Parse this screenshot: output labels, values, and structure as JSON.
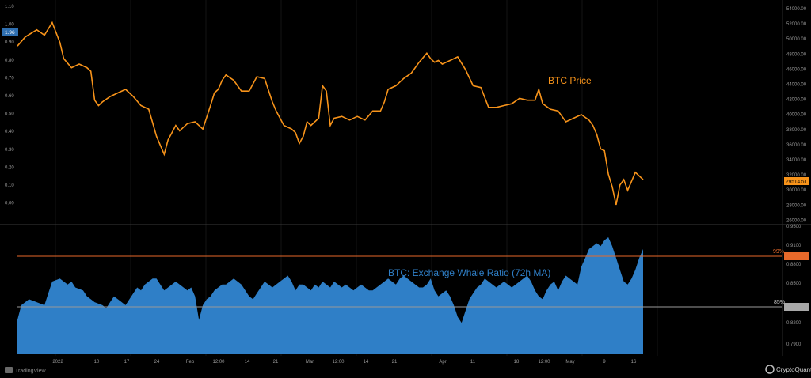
{
  "chart_data": [
    {
      "type": "line",
      "title": "BTC Price",
      "series": [
        {
          "name": "BTC Price",
          "color": "#f7931a",
          "x": [
            0,
            10,
            25,
            35,
            45,
            55,
            60,
            70,
            80,
            90,
            95,
            100,
            105,
            110,
            120,
            130,
            140,
            150,
            160,
            170,
            180,
            185,
            190,
            195,
            200,
            205,
            210,
            220,
            230,
            240,
            250,
            255,
            260,
            265,
            270,
            280,
            290,
            300,
            310,
            320,
            330,
            335,
            340,
            345,
            350,
            355,
            360,
            365,
            370,
            375,
            380,
            385,
            390,
            395,
            400,
            405,
            410,
            420,
            430,
            440,
            450,
            460,
            470,
            475,
            480,
            490,
            500,
            510,
            520,
            530,
            535,
            540,
            545,
            550,
            560,
            570,
            580,
            590,
            600,
            610,
            620,
            630,
            640,
            650,
            660,
            670,
            675,
            680,
            690,
            700,
            710,
            720,
            730,
            740,
            745,
            750,
            755,
            760,
            765,
            770,
            775,
            780,
            785,
            790,
            800,
            810
          ],
          "y": [
            0.88,
            0.93,
            0.97,
            0.94,
            1.01,
            0.9,
            0.81,
            0.76,
            0.78,
            0.76,
            0.74,
            0.58,
            0.55,
            0.57,
            0.6,
            0.62,
            0.64,
            0.6,
            0.55,
            0.53,
            0.38,
            0.33,
            0.28,
            0.36,
            0.4,
            0.44,
            0.41,
            0.45,
            0.46,
            0.42,
            0.55,
            0.62,
            0.64,
            0.69,
            0.72,
            0.69,
            0.63,
            0.63,
            0.71,
            0.7,
            0.57,
            0.52,
            0.48,
            0.44,
            0.43,
            0.42,
            0.4,
            0.34,
            0.38,
            0.46,
            0.44,
            0.46,
            0.48,
            0.66,
            0.63,
            0.44,
            0.48,
            0.49,
            0.47,
            0.49,
            0.47,
            0.52,
            0.52,
            0.57,
            0.64,
            0.66,
            0.7,
            0.73,
            0.79,
            0.84,
            0.81,
            0.79,
            0.8,
            0.78,
            0.8,
            0.82,
            0.75,
            0.66,
            0.65,
            0.54,
            0.54,
            0.55,
            0.56,
            0.59,
            0.58,
            0.58,
            0.64,
            0.56,
            0.53,
            0.52,
            0.46,
            0.48,
            0.5,
            0.47,
            0.44,
            0.39,
            0.31,
            0.3,
            0.17,
            0.1,
            0.0,
            0.11,
            0.14,
            0.08,
            0.18,
            0.14
          ]
        }
      ],
      "y_ticks_left": [
        "1.10",
        "1.00",
        "0.90",
        "0.80",
        "0.70",
        "0.60",
        "0.50",
        "0.40",
        "0.30",
        "0.20",
        "0.10",
        "0.00"
      ],
      "y_ticks_right": [
        "54000.00",
        "52000.00",
        "50000.00",
        "48000.00",
        "46000.00",
        "44000.00",
        "42000.00",
        "40000.00",
        "38000.00",
        "36000.00",
        "34000.00",
        "32000.00",
        "30000.00",
        "28000.00",
        "26000.00"
      ],
      "left_badge": "1.96",
      "price_badge": "29514.51",
      "annotation": "BTC Price"
    },
    {
      "type": "area",
      "title": "BTC: Exchange Whale Ratio (72h MA)",
      "series": [
        {
          "name": "BTC: Exchange Whale Ratio (72h MA)",
          "color": "#2f7fc7",
          "x": [
            0,
            5,
            15,
            25,
            35,
            40,
            45,
            55,
            60,
            65,
            70,
            75,
            85,
            90,
            95,
            100,
            110,
            115,
            120,
            125,
            130,
            135,
            140,
            145,
            150,
            155,
            160,
            165,
            170,
            175,
            180,
            185,
            190,
            195,
            200,
            205,
            210,
            215,
            220,
            225,
            230,
            235,
            240,
            245,
            250,
            255,
            260,
            265,
            270,
            280,
            285,
            290,
            295,
            300,
            305,
            310,
            315,
            320,
            325,
            330,
            335,
            340,
            345,
            350,
            355,
            360,
            365,
            370,
            375,
            380,
            385,
            390,
            395,
            400,
            405,
            410,
            415,
            420,
            425,
            430,
            435,
            440,
            445,
            450,
            455,
            460,
            465,
            470,
            475,
            480,
            485,
            490,
            495,
            500,
            505,
            510,
            515,
            520,
            525,
            530,
            535,
            540,
            545,
            550,
            555,
            560,
            565,
            570,
            575,
            580,
            585,
            590,
            595,
            600,
            605,
            610,
            615,
            620,
            625,
            630,
            635,
            640,
            645,
            650,
            655,
            660,
            665,
            670,
            675,
            680,
            685,
            690,
            695,
            700,
            705,
            710,
            715,
            720,
            725,
            730,
            735,
            740,
            745,
            750,
            755,
            760,
            765,
            770,
            775,
            780,
            785,
            790,
            795,
            800,
            805,
            810
          ],
          "y": [
            0.72,
            0.77,
            0.79,
            0.78,
            0.77,
            0.81,
            0.85,
            0.86,
            0.85,
            0.84,
            0.85,
            0.83,
            0.82,
            0.8,
            0.79,
            0.78,
            0.77,
            0.76,
            0.78,
            0.8,
            0.79,
            0.78,
            0.77,
            0.79,
            0.81,
            0.83,
            0.82,
            0.84,
            0.85,
            0.86,
            0.86,
            0.84,
            0.82,
            0.83,
            0.84,
            0.85,
            0.84,
            0.83,
            0.82,
            0.83,
            0.8,
            0.72,
            0.77,
            0.79,
            0.8,
            0.82,
            0.83,
            0.84,
            0.84,
            0.86,
            0.85,
            0.84,
            0.82,
            0.8,
            0.79,
            0.81,
            0.83,
            0.85,
            0.84,
            0.83,
            0.84,
            0.85,
            0.86,
            0.87,
            0.85,
            0.82,
            0.84,
            0.84,
            0.83,
            0.82,
            0.84,
            0.83,
            0.85,
            0.84,
            0.83,
            0.85,
            0.84,
            0.83,
            0.84,
            0.83,
            0.82,
            0.83,
            0.84,
            0.83,
            0.82,
            0.82,
            0.83,
            0.84,
            0.85,
            0.86,
            0.85,
            0.84,
            0.86,
            0.87,
            0.86,
            0.85,
            0.84,
            0.83,
            0.83,
            0.84,
            0.86,
            0.82,
            0.8,
            0.81,
            0.82,
            0.8,
            0.77,
            0.73,
            0.71,
            0.75,
            0.79,
            0.81,
            0.83,
            0.84,
            0.86,
            0.85,
            0.84,
            0.83,
            0.84,
            0.85,
            0.84,
            0.83,
            0.84,
            0.85,
            0.86,
            0.87,
            0.85,
            0.82,
            0.8,
            0.79,
            0.82,
            0.84,
            0.85,
            0.82,
            0.85,
            0.87,
            0.86,
            0.85,
            0.84,
            0.9,
            0.93,
            0.96,
            0.97,
            0.98,
            0.97,
            0.99,
            1.0,
            0.97,
            0.93,
            0.89,
            0.85,
            0.84,
            0.86,
            0.89,
            0.93,
            0.96
          ]
        }
      ],
      "y_ticks_right": [
        "0.9500",
        "0.9100",
        "0.8800",
        "0.8500",
        "0.8200",
        "0.7900"
      ],
      "reference_lines": [
        {
          "label": "99%",
          "color": "#e8692a"
        },
        {
          "label": "85%",
          "color": "#9a9a9a"
        }
      ],
      "x_ticks": [
        "2022",
        "10",
        "17",
        "24",
        "Feb",
        "12:00",
        "14",
        "21",
        "Mar",
        "12:00",
        "14",
        "21",
        "Apr",
        "11",
        "18",
        "12:00",
        "May",
        "9",
        "16"
      ]
    }
  ],
  "watermark_left": "TradingView",
  "watermark_right": "CryptoQuant"
}
